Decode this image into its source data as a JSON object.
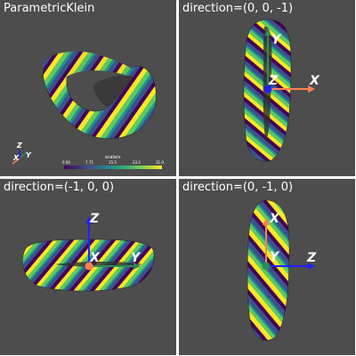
{
  "panes": [
    {
      "title": "ParametricKlein"
    },
    {
      "title": "direction=(0, 0, -1)"
    },
    {
      "title": "direction=(-1, 0, 0)"
    },
    {
      "title": "direction=(0, -1, 0)"
    }
  ],
  "orientation_widget": {
    "x": "X",
    "y": "Y",
    "z": "Z"
  },
  "scalar_bar": {
    "title": "scalars",
    "ticks": [
      "0.00",
      "7.75",
      "15.5",
      "23.2",
      "31.0"
    ]
  },
  "view_axes": {
    "pane1": {
      "right": "X",
      "up": "Y",
      "center": "Z"
    },
    "pane2": {
      "up": "Z",
      "right": "Y",
      "center": "X"
    },
    "pane3": {
      "up": "X",
      "right": "Z",
      "center": "Y"
    }
  },
  "colors": {
    "background": "#4d4d4d",
    "x_axis": "#ff7f50",
    "y_axis": "#2e8b57",
    "z_axis": "#1f1fff",
    "separator": "#ffffff",
    "viridis": [
      "#440154",
      "#3b528b",
      "#21918c",
      "#5ec962",
      "#fde725"
    ]
  }
}
